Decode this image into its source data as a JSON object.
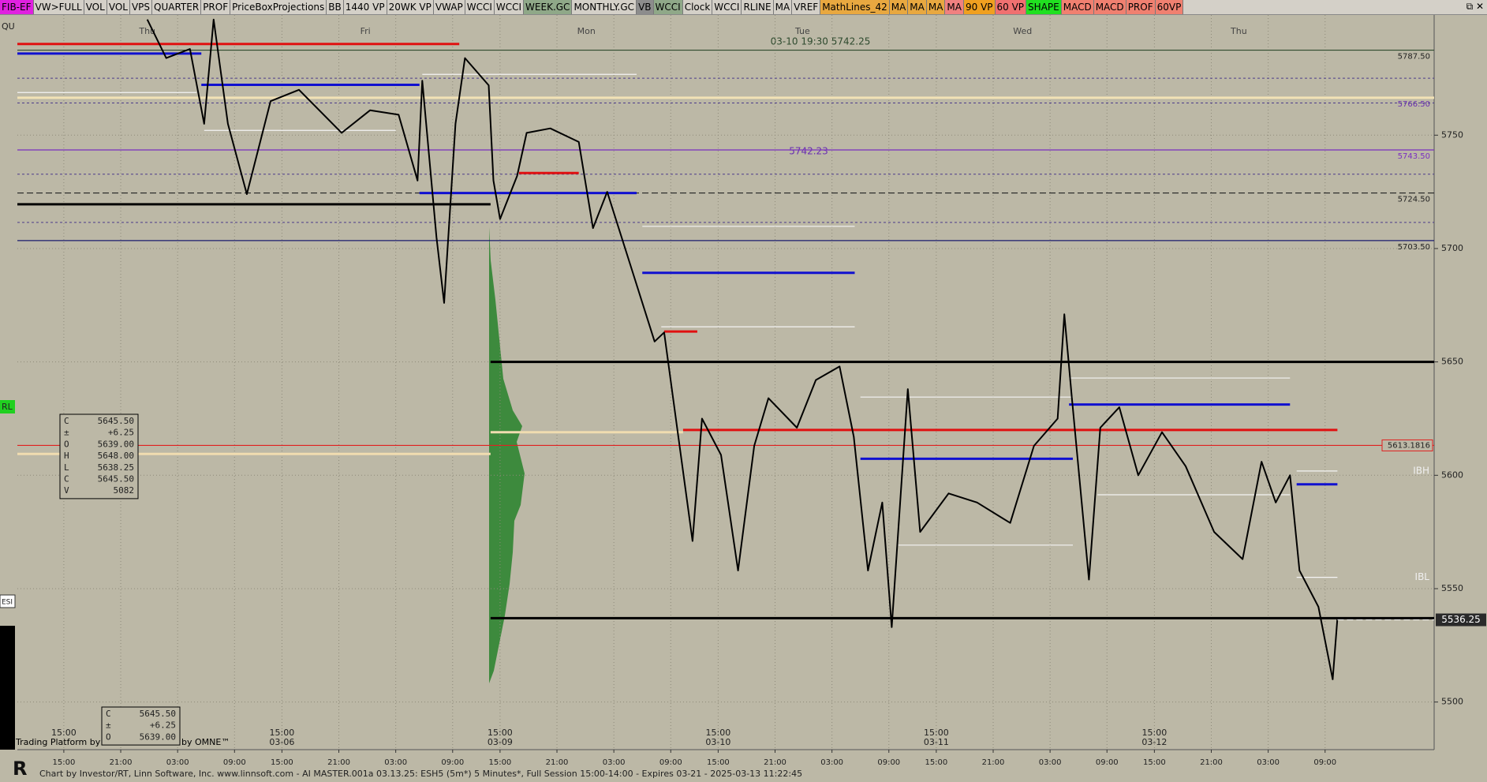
{
  "toolbar": [
    {
      "label": "FIB-EF",
      "color": "#e020e0"
    },
    {
      "label": "VW>FULL",
      "color": "#d4d0c8"
    },
    {
      "label": "VOL",
      "color": "#d4d0c8"
    },
    {
      "label": "VOL",
      "color": "#d4d0c8"
    },
    {
      "label": "VPS",
      "color": "#d4d0c8"
    },
    {
      "label": "QUARTER",
      "color": "#d4d0c8"
    },
    {
      "label": "PROF",
      "color": "#d4d0c8"
    },
    {
      "label": "PriceBoxProjections",
      "color": "#d4d0c8"
    },
    {
      "label": "BB",
      "color": "#d4d0c8"
    },
    {
      "label": "1440 VP",
      "color": "#d4d0c8"
    },
    {
      "label": "20WK VP",
      "color": "#d4d0c8"
    },
    {
      "label": "VWAP",
      "color": "#d4d0c8"
    },
    {
      "label": "WCCI",
      "color": "#d4d0c8"
    },
    {
      "label": "WCCI",
      "color": "#d4d0c8"
    },
    {
      "label": "WEEK.GC",
      "color": "#8fa888"
    },
    {
      "label": "MONTHLY.GC",
      "color": "#d4d0c8"
    },
    {
      "label": "VB",
      "color": "#8c8c8c"
    },
    {
      "label": "WCCI",
      "color": "#8fa888"
    },
    {
      "label": "Clock",
      "color": "#d4d0c8"
    },
    {
      "label": "WCCI",
      "color": "#d4d0c8"
    },
    {
      "label": "RLINE",
      "color": "#d4d0c8"
    },
    {
      "label": "MA",
      "color": "#d4d0c8"
    },
    {
      "label": "VREF",
      "color": "#d4d0c8"
    },
    {
      "label": "MathLines_42",
      "color": "#e8a840"
    },
    {
      "label": "MA",
      "color": "#e8a840"
    },
    {
      "label": "MA",
      "color": "#e8a840"
    },
    {
      "label": "MA",
      "color": "#e8a840"
    },
    {
      "label": "MA",
      "color": "#f08080"
    },
    {
      "label": "90 VP",
      "color": "#f0a020"
    },
    {
      "label": "60 VP",
      "color": "#f07070"
    },
    {
      "label": "SHAPE",
      "color": "#20e020"
    },
    {
      "label": "MACD",
      "color": "#f08070"
    },
    {
      "label": "MACD",
      "color": "#f08070"
    },
    {
      "label": "PROF",
      "color": "#f08070"
    },
    {
      "label": "60VP",
      "color": "#f08070"
    }
  ],
  "left_labels": {
    "top": "QU",
    "rl": "RL",
    "sym": "ESI"
  },
  "chart_data": {
    "type": "line",
    "x": [
      8.8,
      10.8,
      13.3,
      14.8,
      15.8,
      17.3,
      19.3,
      21.8,
      24.8,
      29.3,
      32.3,
      35.3,
      37.3,
      37.8,
      39.3,
      40.1,
      41.3,
      42.3,
      44.8,
      45.3,
      46,
      47.8,
      48.8,
      51.3,
      54.3,
      55.8,
      57.3,
      59.8,
      62.3,
      63.3,
      66.3,
      67.3,
      69.3,
      71.1,
      72.8,
      74.3,
      77.3,
      79.3,
      81.8,
      83.3,
      84.8,
      86.3,
      87.3,
      89,
      90.3,
      93.3,
      96.3,
      99.8,
      102.3,
      104.8,
      105.5,
      106.3,
      108.1,
      109.3,
      111.3,
      113.3,
      115.8,
      118.3,
      121.3,
      124.3,
      126.3,
      127.8,
      129.3,
      130.3,
      132.3,
      133.8,
      134.3
    ],
    "series": [
      {
        "color": "#000000",
        "values": [
          5801,
          5784,
          5788,
          5755,
          5801,
          5755,
          5724,
          5765,
          5770,
          5751,
          5761,
          5759,
          5730,
          5774,
          5705,
          5676,
          5755,
          5784,
          5772,
          5730,
          5713,
          5732,
          5751,
          5753,
          5747,
          5709,
          5725,
          5692,
          5659,
          5663,
          5571,
          5625,
          5609,
          5558,
          5613,
          5634,
          5621,
          5642,
          5648,
          5617,
          5558,
          5588,
          5533,
          5638,
          5575,
          5592,
          5588,
          5579,
          5613,
          5625,
          5671,
          5634,
          5554,
          5621,
          5630,
          5600,
          5619,
          5604,
          5575,
          5563,
          5606,
          5588,
          5600,
          5558,
          5542,
          5510,
          5537
        ]
      }
    ],
    "xlim": [
      -4.9,
      144.5
    ],
    "ylim": [
      5479,
      5803
    ],
    "yticks": [
      5500,
      5550,
      5600,
      5650,
      5700,
      5750
    ],
    "xticks": [
      {
        "value": 0,
        "label": "15:00"
      },
      {
        "value": 6,
        "label": "21:00"
      },
      {
        "value": 12,
        "label": "03:00"
      },
      {
        "value": 18,
        "label": "09:00"
      },
      {
        "value": 23,
        "label": "15:00"
      },
      {
        "value": 29,
        "label": "21:00"
      },
      {
        "value": 35,
        "label": "03:00"
      },
      {
        "value": 41,
        "label": "09:00"
      },
      {
        "value": 46,
        "label": "15:00"
      },
      {
        "value": 52,
        "label": "21:00"
      },
      {
        "value": 58,
        "label": "03:00"
      },
      {
        "value": 64,
        "label": "09:00"
      },
      {
        "value": 69,
        "label": "15:00"
      },
      {
        "value": 75,
        "label": "21:00"
      },
      {
        "value": 81,
        "label": "03:00"
      },
      {
        "value": 87,
        "label": "09:00"
      },
      {
        "value": 92,
        "label": "15:00"
      },
      {
        "value": 98,
        "label": "21:00"
      },
      {
        "value": 104,
        "label": "03:00"
      },
      {
        "value": 110,
        "label": "09:00"
      },
      {
        "value": 115,
        "label": "15:00"
      },
      {
        "value": 121,
        "label": "21:00"
      },
      {
        "value": 127,
        "label": "03:00"
      },
      {
        "value": 133,
        "label": "09:00"
      }
    ],
    "grid": true,
    "day_labels": [
      {
        "x": 8.8,
        "label": "Thu"
      },
      {
        "x": 31.8,
        "label": "Fri"
      },
      {
        "x": 55.1,
        "label": "Mon"
      },
      {
        "x": 77.9,
        "label": "Tue"
      },
      {
        "x": 101.1,
        "label": "Wed"
      },
      {
        "x": 123.9,
        "label": "Thu"
      }
    ],
    "session_labels": [
      {
        "x": 0,
        "time": "15:00"
      },
      {
        "x": 23,
        "time": "15:00",
        "date": "03-06"
      },
      {
        "x": 46,
        "time": "15:00",
        "date": "03-09"
      },
      {
        "x": 69,
        "time": "15:00",
        "date": "03-10"
      },
      {
        "x": 92,
        "time": "15:00",
        "date": "03-11"
      },
      {
        "x": 115,
        "time": "15:00",
        "date": "03-12"
      }
    ],
    "levels": [
      {
        "value": 5787.5,
        "label": "5787.50",
        "color": "#2e4a2e"
      },
      {
        "value": 5766.5,
        "label": "5766.50",
        "color": "#f2e2b6",
        "style": "thick",
        "label_color": "#6a2fb0"
      },
      {
        "value": 5775.1,
        "color": "#4b3b8b",
        "style": "dotted"
      },
      {
        "value": 5764.2,
        "color": "#4b3b8b",
        "style": "dotted"
      },
      {
        "value": 5743.5,
        "label": "5743.50",
        "color": "#7a2fc0",
        "label_color": "#7a2fc0"
      },
      {
        "value": 5732.8,
        "color": "#4b3b8b",
        "style": "dotted"
      },
      {
        "value": 5724.5,
        "label": "5724.50",
        "color": "#222222",
        "style": "dashed"
      },
      {
        "value": 5711.5,
        "color": "#4b3b8b",
        "style": "dotted"
      },
      {
        "value": 5703.5,
        "label": "5703.50",
        "color": "#1a1a6e"
      },
      {
        "value": 5613.1816,
        "label": "5613.1816",
        "color": "#e02020",
        "boxed": true
      },
      {
        "value": 5719.5,
        "from": -4.9,
        "to": 45,
        "color": "#000000",
        "style": "thick"
      },
      {
        "value": 5650,
        "from": 45,
        "color": "#000000",
        "style": "thick"
      },
      {
        "value": 5537,
        "from": 45,
        "color": "#000000",
        "style": "thick"
      },
      {
        "value": 5620,
        "from": 65.3,
        "to": 134.3,
        "color": "#e01010",
        "style": "thick"
      },
      {
        "value": 5619,
        "from": 45,
        "to": 65.3,
        "color": "#f0dcb0",
        "style": "thick"
      },
      {
        "value": 5609.4,
        "from": -4.9,
        "to": 45,
        "color": "#f0dcb0",
        "style": "thick"
      },
      {
        "value": 5790.2,
        "from": -4.9,
        "to": 41.7,
        "color": "#e01010",
        "style": "thick"
      },
      {
        "value": 5786,
        "from": -4.9,
        "to": 14.5,
        "color": "#1010d0",
        "style": "thick"
      },
      {
        "value": 5772.2,
        "from": 14.5,
        "to": 37.5,
        "color": "#1010d0",
        "style": "thick"
      },
      {
        "value": 5768.8,
        "from": -4.9,
        "to": 14,
        "color": "#f4f4f4"
      },
      {
        "value": 5752.1,
        "from": 14.8,
        "to": 35,
        "color": "#f4f4f4"
      },
      {
        "value": 5776.8,
        "from": 37.8,
        "to": 60.4,
        "color": "#f4f4f4"
      },
      {
        "value": 5724.5,
        "from": 37.5,
        "to": 60.4,
        "color": "#1010d0",
        "style": "thick"
      },
      {
        "value": 5733.3,
        "from": 48,
        "to": 54.3,
        "color": "#e01010",
        "style": "thick"
      },
      {
        "value": 5709.8,
        "from": 61,
        "to": 83.4,
        "color": "#f4f4f4"
      },
      {
        "value": 5689.3,
        "from": 61,
        "to": 83.4,
        "color": "#1010d0",
        "style": "thick"
      },
      {
        "value": 5665.5,
        "from": 63,
        "to": 83.4,
        "color": "#f4f4f4"
      },
      {
        "value": 5663.4,
        "from": 63.3,
        "to": 66.8,
        "color": "#e01010",
        "style": "thick"
      },
      {
        "value": 5634.5,
        "from": 84,
        "to": 106.4,
        "color": "#f4f4f4"
      },
      {
        "value": 5607.3,
        "from": 84,
        "to": 106.4,
        "color": "#1010d0",
        "style": "thick"
      },
      {
        "value": 5569.2,
        "from": 88,
        "to": 106.4,
        "color": "#f4f4f4"
      },
      {
        "value": 5642.9,
        "from": 106,
        "to": 129.3,
        "color": "#f4f4f4"
      },
      {
        "value": 5631.2,
        "from": 106,
        "to": 129.3,
        "color": "#1010d0",
        "style": "thick"
      },
      {
        "value": 5591.4,
        "from": 109,
        "to": 129.3,
        "color": "#f4f4f4"
      },
      {
        "value": 5596,
        "from": 130,
        "to": 134.3,
        "color": "#1010d0",
        "style": "thick"
      },
      {
        "value": 5601.9,
        "from": 130,
        "to": 134.3,
        "color": "#f4f4f4"
      },
      {
        "value": 5555,
        "from": 130,
        "to": 134.3,
        "color": "#f4f4f4"
      }
    ],
    "last": {
      "value": 5536.25,
      "label": "5536.25"
    },
    "ib_labels": [
      {
        "value": 5601.9,
        "label": "IBH"
      },
      {
        "value": 5555,
        "label": "IBL"
      }
    ],
    "annotations": {
      "top": "03-10 19:30  5742.25",
      "mid": "5742.23"
    },
    "ohlc": [
      [
        "C",
        "5645.50"
      ],
      [
        "±",
        "+6.25"
      ],
      [
        "O",
        "5639.00"
      ],
      [
        "H",
        "5648.00"
      ],
      [
        "L",
        "5638.25"
      ],
      [
        "C",
        "5645.50"
      ],
      [
        "V",
        "5082"
      ]
    ]
  },
  "branding": {
    "platform": "Trading Platform by R",
    "omne": "by OMNE™"
  },
  "footer": "Chart by Investor/RT, Linn Software, Inc. www.linnsoft.com - AI MASTER.001a    03.13.25: ESH5 (5m*) 5 Minutes*, Full Session 15:00-14:00 - Expires 03-21 - 2025-03-13 11:22:45"
}
